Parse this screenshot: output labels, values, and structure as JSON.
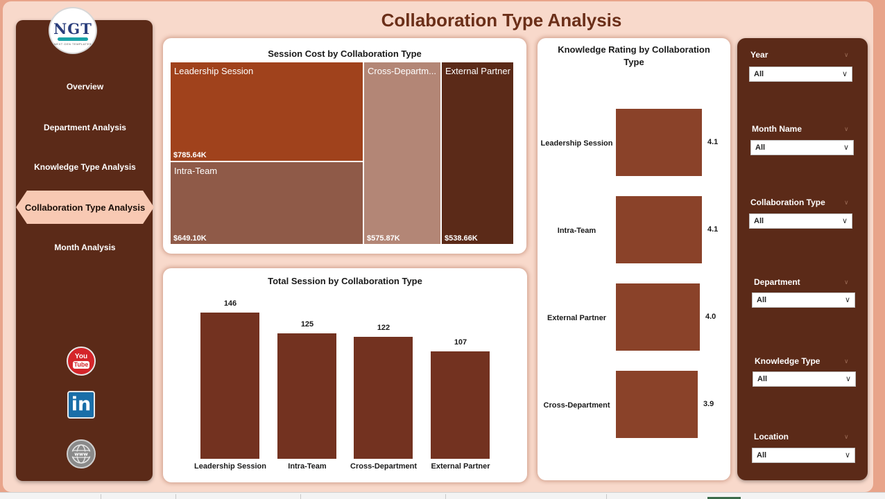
{
  "page": {
    "title": "Collaboration Type Analysis"
  },
  "logo": {
    "mark": "NGT",
    "subtitle": "NEXT GEN TEMPLATES"
  },
  "nav": {
    "items": [
      "Overview",
      "Department Analysis",
      "Knowledge Type Analysis",
      "Collaboration Type Analysis",
      "Month Analysis"
    ],
    "active": "Collaboration Type Analysis"
  },
  "social": {
    "youtube_top": "You",
    "youtube_bottom": "Tube",
    "linkedin": "in",
    "web": "www"
  },
  "colors": {
    "sidebar": "#5b2a18",
    "active_nav": "#f8c9b3",
    "title": "#6b2f19",
    "bar_primary": "#733220",
    "bar_rating": "#8a4229"
  },
  "treemap": {
    "title": "Session Cost by Collaboration Type",
    "cells": [
      {
        "label": "Leadership Session",
        "value": "$785.64K",
        "color": "#a0421c"
      },
      {
        "label": "Intra-Team",
        "value": "$649.10K",
        "color": "#8f5a48"
      },
      {
        "label": "Cross-Departm...",
        "value": "$575.87K",
        "color": "#b38676"
      },
      {
        "label": "External Partner",
        "value": "$538.66K",
        "color": "#5b2a18"
      }
    ]
  },
  "sessions_chart": {
    "title": "Total Session by Collaboration Type",
    "categories": [
      "Leadership Session",
      "Intra-Team",
      "Cross-Department",
      "External Partner"
    ],
    "value_labels": [
      "146",
      "125",
      "122",
      "107"
    ]
  },
  "rating_chart": {
    "title_line1": "Knowledge Rating by Collaboration",
    "title_line2": "Type",
    "categories": [
      "Leadership Session",
      "Intra-Team",
      "External Partner",
      "Cross-Department"
    ],
    "value_labels": [
      "4.1",
      "4.1",
      "4.0",
      "3.9"
    ]
  },
  "filters": [
    {
      "label": "Year",
      "value": "All"
    },
    {
      "label": "Month Name",
      "value": "All"
    },
    {
      "label": "Collaboration Type",
      "value": "All"
    },
    {
      "label": "Department",
      "value": "All"
    },
    {
      "label": "Knowledge Type",
      "value": "All"
    },
    {
      "label": "Location",
      "value": "All"
    }
  ],
  "chart_data": [
    {
      "type": "treemap",
      "title": "Session Cost by Collaboration Type",
      "categories": [
        "Leadership Session",
        "Intra-Team",
        "Cross-Department",
        "External Partner"
      ],
      "values": [
        785.64,
        649.1,
        575.87,
        538.66
      ],
      "unit": "$K"
    },
    {
      "type": "bar",
      "title": "Total Session by Collaboration Type",
      "categories": [
        "Leadership Session",
        "Intra-Team",
        "Cross-Department",
        "External Partner"
      ],
      "values": [
        146,
        125,
        122,
        107
      ]
    },
    {
      "type": "bar",
      "orientation": "horizontal",
      "title": "Knowledge Rating by Collaboration Type",
      "categories": [
        "Leadership Session",
        "Intra-Team",
        "External Partner",
        "Cross-Department"
      ],
      "values": [
        4.1,
        4.1,
        4.0,
        3.9
      ]
    }
  ]
}
